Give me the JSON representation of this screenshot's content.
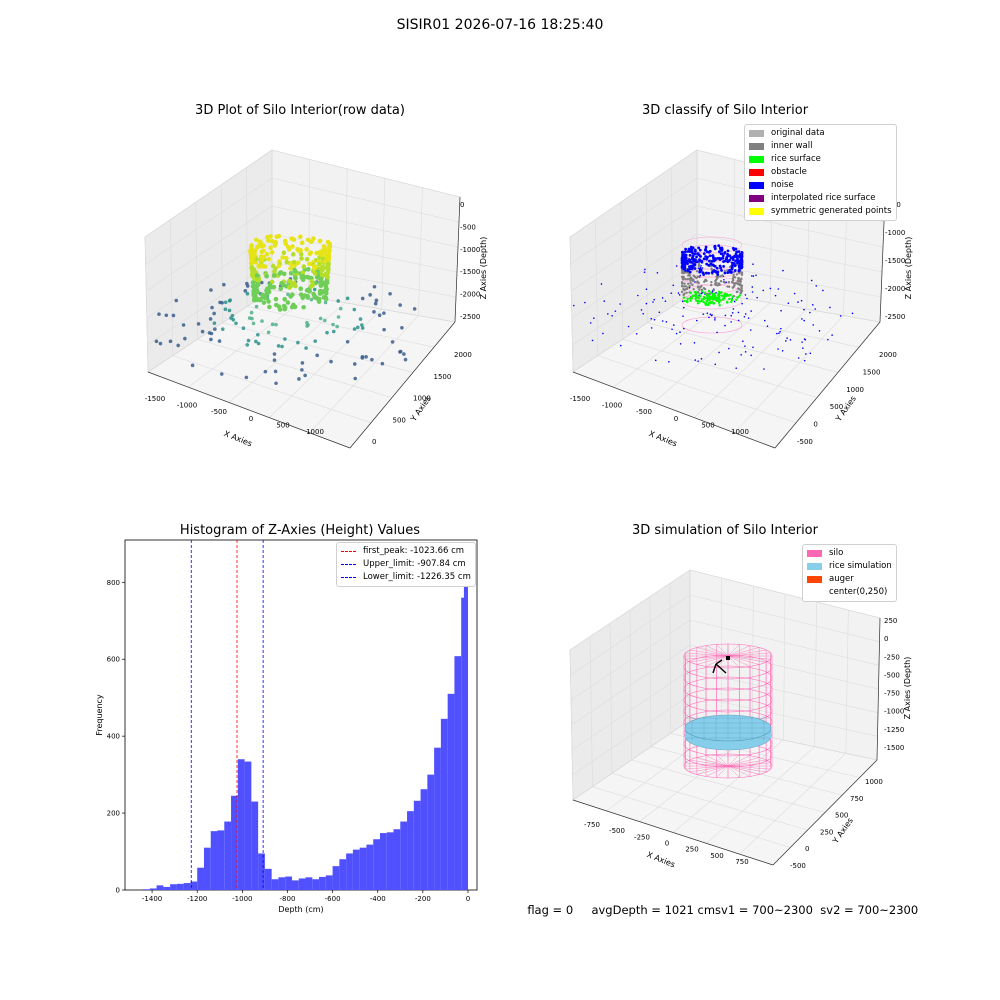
{
  "suptitle": "SISIR01 2026-07-16 18:25:40",
  "status": {
    "flag": "flag = 0",
    "avg": "avgDepth = 1021 cmsv1 = 700~2300",
    "sv2": "sv2 = 700~2300"
  },
  "colors": {
    "hist_bar": "#5050ff",
    "silo": "#ff69b4",
    "rice": "#87ceeb",
    "auger": "#ff4500",
    "noise": "#0000ff",
    "inner_wall": "#808080",
    "rice_surface": "#00ff00"
  },
  "chart_data": [
    {
      "type": "scatter",
      "projection": "3d",
      "title": "3D Plot of Silo Interior(row data)",
      "xlabel": "X Axies",
      "ylabel": "Y Axies",
      "zlabel": "Z Axies (Depth)",
      "x_ticks": [
        "-1500",
        "-1000",
        "-500",
        "0",
        "500",
        "1000"
      ],
      "y_ticks": [
        "0",
        "500",
        "1000",
        "1500",
        "2000"
      ],
      "z_ticks": [
        "0",
        "-500",
        "-1000",
        "-1500",
        "-2000",
        "-2500"
      ],
      "xlim": [
        -1600,
        1300
      ],
      "ylim": [
        -400,
        2200
      ],
      "zlim": [
        -2800,
        100
      ],
      "colormap": "viridis"
    },
    {
      "type": "scatter",
      "projection": "3d",
      "title": "3D classify of Silo Interior",
      "xlabel": "X Axies",
      "ylabel": "Y Axies",
      "zlabel": "Z Axies (Depth)",
      "x_ticks": [
        "-1500",
        "-1000",
        "-500",
        "0",
        "500",
        "1000"
      ],
      "y_ticks": [
        "-500",
        "0",
        "500",
        "1000",
        "1500",
        "2000"
      ],
      "z_ticks": [
        "-500",
        "-1000",
        "-1500",
        "-2000",
        "-2500"
      ],
      "legend": [
        {
          "label": "original data",
          "color": "#b0b0b0"
        },
        {
          "label": "inner wall",
          "color": "#808080"
        },
        {
          "label": "rice surface",
          "color": "#00ff00"
        },
        {
          "label": "obstacle",
          "color": "#ff0000"
        },
        {
          "label": "noise",
          "color": "#0000ff"
        },
        {
          "label": "interpolated rice surface",
          "color": "#800080"
        },
        {
          "label": "symmetric generated points",
          "color": "#ffff00"
        }
      ],
      "legend_position": "top-right"
    },
    {
      "type": "bar",
      "title": "Histogram of Z-Axies (Height) Values",
      "xlabel": "Depth (cm)",
      "ylabel": "Frequency",
      "xlim": [
        -1520,
        40
      ],
      "ylim": [
        0,
        910
      ],
      "x_ticks": [
        -1400,
        -1200,
        -1000,
        -800,
        -600,
        -400,
        -200,
        0
      ],
      "y_ticks": [
        0,
        200,
        400,
        600,
        800
      ],
      "bin_width": 30,
      "bin_starts": [
        -1440,
        -1410,
        -1380,
        -1350,
        -1320,
        -1290,
        -1260,
        -1230,
        -1200,
        -1170,
        -1140,
        -1110,
        -1080,
        -1050,
        -1020,
        -990,
        -960,
        -930,
        -900,
        -870,
        -840,
        -810,
        -780,
        -750,
        -720,
        -690,
        -660,
        -630,
        -600,
        -570,
        -540,
        -510,
        -480,
        -450,
        -420,
        -390,
        -360,
        -330,
        -300,
        -270,
        -240,
        -210,
        -180,
        -150,
        -120,
        -90,
        -60,
        -30
      ],
      "values": [
        2,
        4,
        12,
        8,
        15,
        16,
        18,
        22,
        58,
        110,
        153,
        155,
        178,
        245,
        340,
        334,
        230,
        95,
        55,
        28,
        33,
        35,
        25,
        30,
        33,
        28,
        34,
        38,
        62,
        80,
        95,
        105,
        110,
        118,
        132,
        148,
        150,
        158,
        178,
        205,
        232,
        262,
        300,
        370,
        445,
        510,
        608,
        760
      ],
      "extra_bar": {
        "start": -18,
        "width": 18,
        "value": 850
      },
      "vlines": [
        {
          "x": -1023.66,
          "label": "first_peak: -1023.66 cm",
          "color": "#ff0000"
        },
        {
          "x": -907.84,
          "label": "Upper_limit: -907.84 cm",
          "color": "#0000ff"
        },
        {
          "x": -1226.35,
          "label": "Lower_limit: -1226.35 cm",
          "color": "#0000ff"
        }
      ],
      "legend_position": "top-right"
    },
    {
      "type": "surface",
      "projection": "3d",
      "title": "3D simulation of Silo Interior",
      "xlabel": "X Axies",
      "ylabel": "Y Axies",
      "zlabel": "Z Axies (Depth)",
      "x_ticks": [
        "-750",
        "-500",
        "-250",
        "0",
        "250",
        "500",
        "750"
      ],
      "y_ticks": [
        "-500",
        "0",
        "250",
        "500",
        "750",
        "1000"
      ],
      "z_ticks": [
        "250",
        "0",
        "-250",
        "-500",
        "-750",
        "-1000",
        "-1250",
        "-1500"
      ],
      "legend": [
        {
          "label": "silo",
          "color": "#ff69b4"
        },
        {
          "label": "rice simulation",
          "color": "#87ceeb"
        },
        {
          "label": "auger",
          "color": "#ff4500"
        },
        {
          "label": "center(0,250)",
          "color": "#ffffff"
        }
      ],
      "legend_position": "top-right"
    }
  ]
}
